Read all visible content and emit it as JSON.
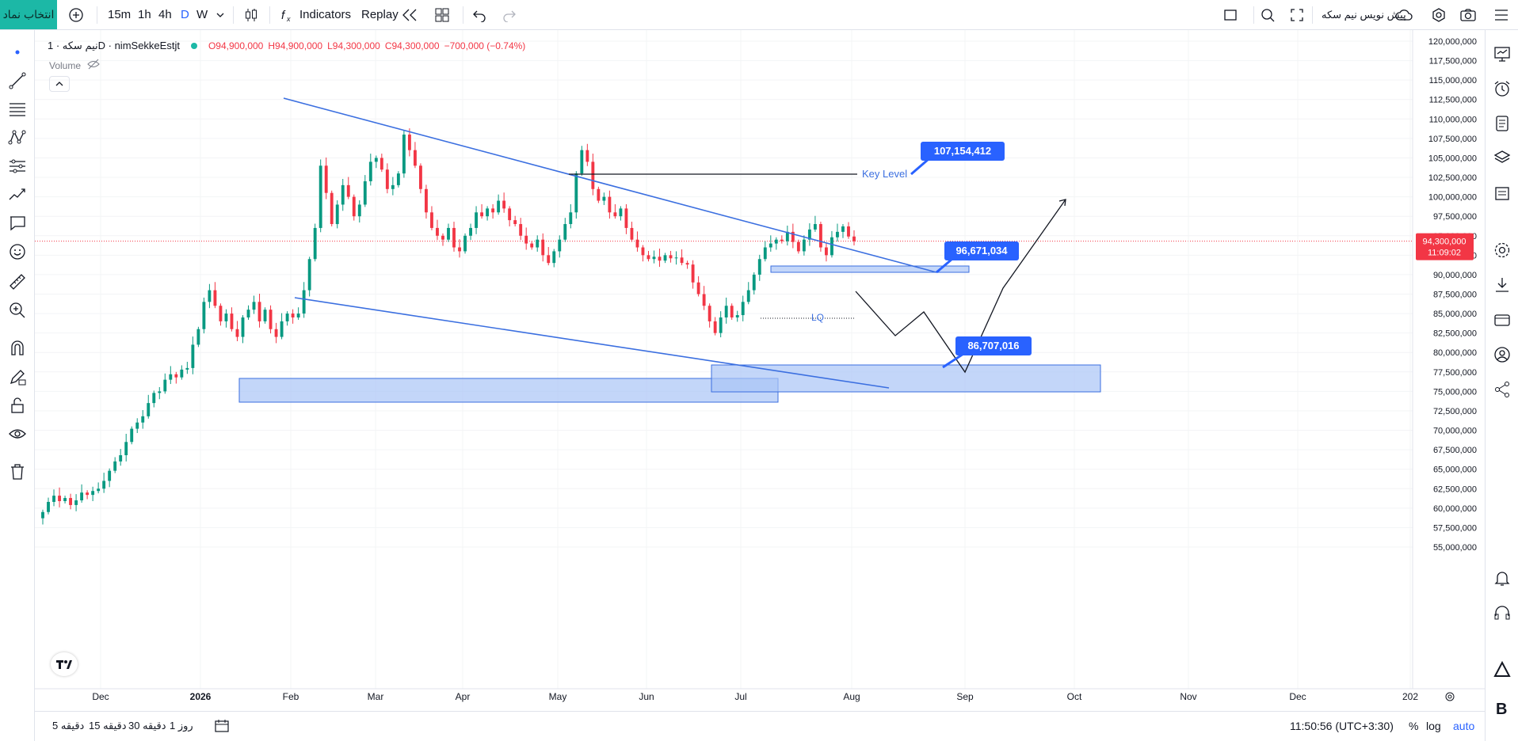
{
  "toolbar": {
    "symbol_button": "انتخاب نماد",
    "intervals": [
      "15m",
      "1h",
      "4h",
      "D",
      "W"
    ],
    "active_interval": "D",
    "indicators_label": "Indicators",
    "replay_label": "Replay",
    "script_label": "پیش نویس نیم سکه"
  },
  "legend": {
    "title": "نیم سکه · 1D · nimSekkeEstjt",
    "open": "O94,900,000",
    "high": "H94,900,000",
    "low": "L94,300,000",
    "close": "C94,300,000",
    "change": "−700,000 (−0.74%)",
    "volume_label": "Volume"
  },
  "price_axis": {
    "labels": [
      "120,000,000",
      "117,500,000",
      "115,000,000",
      "112,500,000",
      "110,000,000",
      "107,500,000",
      "105,000,000",
      "102,500,000",
      "100,000,000",
      "97,500,000",
      "95,000,000",
      "92,500,000",
      "90,000,000",
      "87,500,000",
      "85,000,000",
      "82,500,000",
      "80,000,000",
      "77,500,000",
      "75,000,000",
      "72,500,000",
      "70,000,000",
      "67,500,000",
      "65,000,000",
      "62,500,000",
      "60,000,000",
      "57,500,000",
      "55,000,000"
    ],
    "current_price": "94,300,000",
    "countdown": "11:09:02"
  },
  "time_axis": {
    "labels": [
      "Dec",
      "2026",
      "Feb",
      "Mar",
      "Apr",
      "May",
      "Jun",
      "Jul",
      "Aug",
      "Sep",
      "Oct",
      "Nov",
      "Dec",
      "202"
    ]
  },
  "annotations": {
    "key_level_text": "Key Level",
    "lq_text": "LQ",
    "callouts": [
      "107,154,412",
      "96,671,034",
      "86,707,016"
    ]
  },
  "bottombar": {
    "ranges": [
      "5 دقیقه",
      "15 دقیقه",
      "30 دقیقه",
      "1 روز"
    ],
    "clock": "11:50:56 (UTC+3:30)",
    "percent": "%",
    "log": "log",
    "auto": "auto"
  },
  "colors": {
    "up": "#089981",
    "down": "#f23645",
    "accent": "#2962ff",
    "trend": "#3b6fe0",
    "zone_fill": "#a9c4f7",
    "price_tag": "#f23645",
    "symbol_btn": "#1cb8a6"
  }
}
